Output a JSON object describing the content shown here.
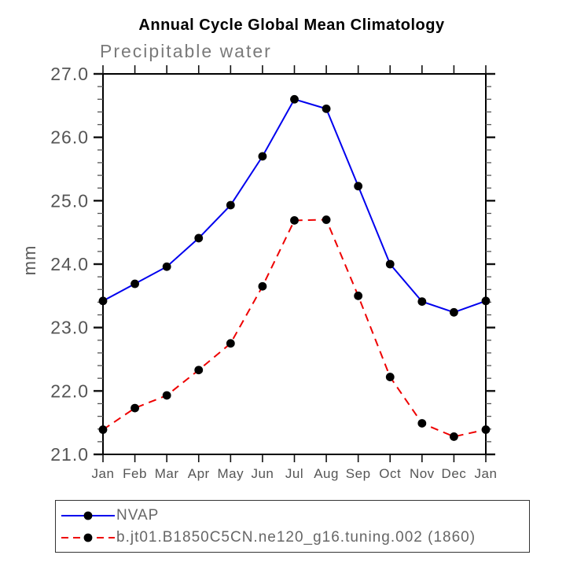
{
  "title": "Annual Cycle Global Mean Climatology",
  "subtitle": "Precipitable water",
  "ylabel": "mm",
  "legend": {
    "position": "bottom-left",
    "entries": [
      {
        "label": "NVAP",
        "color": "#0000ee",
        "style": "solid",
        "marker": "circle",
        "marker_color": "#000000"
      },
      {
        "label": "b.jt01.B1850C5CN.ne120_g16.tuning.002 (1860)",
        "color": "#ee0000",
        "style": "dashed",
        "marker": "circle",
        "marker_color": "#000000"
      }
    ]
  },
  "chart_data": {
    "type": "line",
    "title": "Annual Cycle Global Mean Climatology",
    "subtitle": "Precipitable water",
    "xlabel": "",
    "ylabel": "mm",
    "categories": [
      "Jan",
      "Feb",
      "Mar",
      "Apr",
      "May",
      "Jun",
      "Jul",
      "Aug",
      "Sep",
      "Oct",
      "Nov",
      "Dec",
      "Jan"
    ],
    "series": [
      {
        "name": "NVAP",
        "color": "#0000ee",
        "line_style": "solid",
        "marker": "circle",
        "marker_color": "#000000",
        "values": [
          23.42,
          23.69,
          23.96,
          24.41,
          24.93,
          25.7,
          26.6,
          26.45,
          25.23,
          24.0,
          23.41,
          23.24,
          23.42
        ]
      },
      {
        "name": "b.jt01.B1850C5CN.ne120_g16.tuning.002 (1860)",
        "color": "#ee0000",
        "line_style": "dashed",
        "marker": "circle",
        "marker_color": "#000000",
        "values": [
          21.39,
          21.73,
          21.93,
          22.33,
          22.75,
          23.65,
          24.69,
          24.7,
          23.5,
          22.22,
          21.49,
          21.28,
          21.39
        ]
      }
    ],
    "ylim": [
      21.0,
      27.0
    ],
    "y_major_ticks": [
      21.0,
      22.0,
      23.0,
      24.0,
      25.0,
      26.0,
      27.0
    ],
    "y_tick_labels": [
      "21.0",
      "22.0",
      "23.0",
      "24.0",
      "25.0",
      "26.0",
      "27.0"
    ],
    "y_minor_step": 0.2,
    "grid": false,
    "axis_color": "#000000",
    "tick_label_color": "#555555",
    "legend_position": "bottom-left"
  }
}
